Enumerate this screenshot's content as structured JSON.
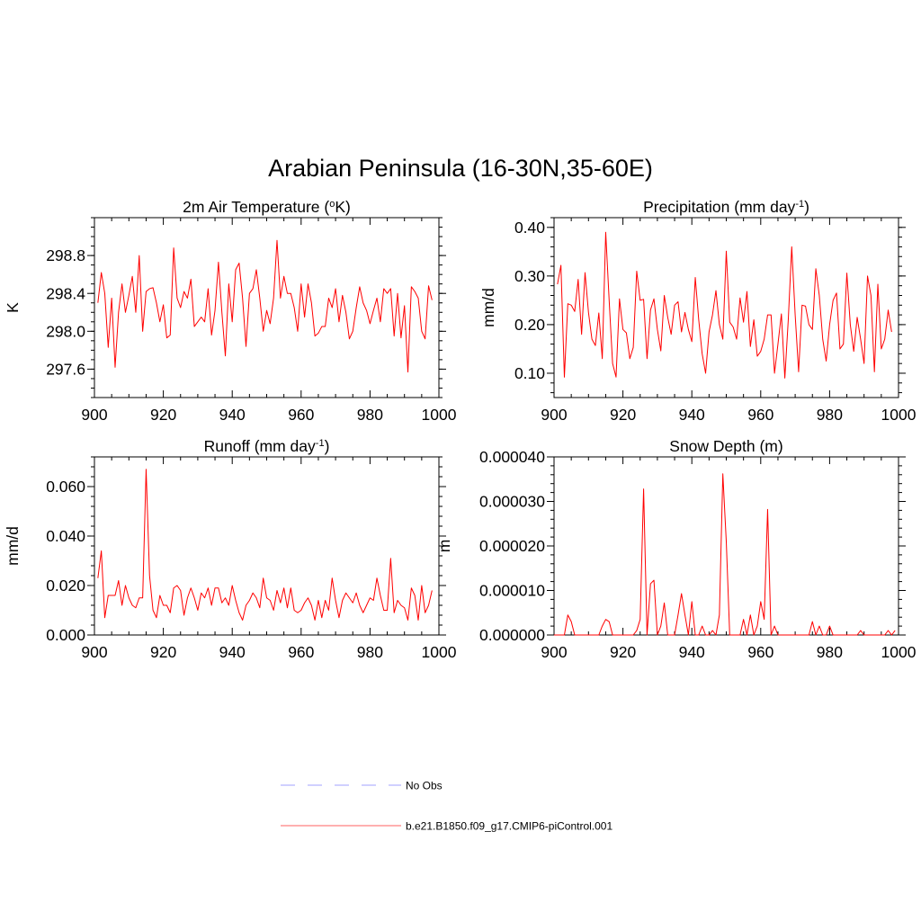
{
  "figure": {
    "title": "Arabian Peninsula (16-30N,35-60E)"
  },
  "legend": {
    "placement": "bottom-center",
    "entries": [
      {
        "label": "No Obs",
        "style": "dashed",
        "color": "#b4b4ff"
      },
      {
        "label": "b.e21.B1850.f09_g17.CMIP6-piControl.001",
        "style": "solid",
        "color": "#ff8080"
      }
    ]
  },
  "colors": {
    "series": "#ff0000",
    "axes": "#000000"
  },
  "chart_data": [
    {
      "id": "temp",
      "type": "line",
      "title": "2m Air Temperature (°K)",
      "title_parts": [
        "2m Air Temperature (",
        "o",
        "K)"
      ],
      "title_sup_index": 1,
      "ylabel": "K",
      "xlim": [
        900,
        1000
      ],
      "ylim": [
        297.3,
        299.2
      ],
      "xticks": [
        900,
        920,
        940,
        960,
        980,
        1000
      ],
      "yticks": [
        297.6,
        298.0,
        298.4,
        298.8
      ],
      "ytick_labels": [
        "297.6",
        "298.0",
        "298.4",
        "298.8"
      ],
      "yminor_step": 0.1,
      "grid": false,
      "series": [
        {
          "x_start": 901,
          "values": [
            298.3,
            298.62,
            298.4,
            297.83,
            298.35,
            297.62,
            298.2,
            298.5,
            298.2,
            298.38,
            298.58,
            298.2,
            298.8,
            298.0,
            298.42,
            298.45,
            298.46,
            298.3,
            298.1,
            298.28,
            297.93,
            297.96,
            298.88,
            298.35,
            298.25,
            298.42,
            298.35,
            298.55,
            298.05,
            298.1,
            298.15,
            298.1,
            298.45,
            297.96,
            298.22,
            298.73,
            298.2,
            297.74,
            298.5,
            298.1,
            298.65,
            298.72,
            298.35,
            297.84,
            298.4,
            298.45,
            298.65,
            298.35,
            298.0,
            298.22,
            298.08,
            298.35,
            298.96,
            298.35,
            298.58,
            298.4,
            298.4,
            298.25,
            298.0,
            298.5,
            298.15,
            298.5,
            298.3,
            297.95,
            297.98,
            298.05,
            298.05,
            298.35,
            298.25,
            298.45,
            298.1,
            298.38,
            298.2,
            297.92,
            298.0,
            298.25,
            298.47,
            298.3,
            298.22,
            298.08,
            298.22,
            298.35,
            298.1,
            298.45,
            298.4,
            298.45,
            297.95,
            298.4,
            297.93,
            298.27,
            297.57,
            298.47,
            298.42,
            298.35,
            298.0,
            297.92,
            298.48,
            298.33
          ]
        }
      ]
    },
    {
      "id": "precip",
      "type": "line",
      "title": "Precipitation (mm day-1)",
      "title_parts": [
        "Precipitation (mm day",
        "-1",
        ")"
      ],
      "title_sup_index": 1,
      "ylabel": "mm/d",
      "xlim": [
        900,
        1000
      ],
      "ylim": [
        0.05,
        0.42
      ],
      "xticks": [
        900,
        920,
        940,
        960,
        980,
        1000
      ],
      "yticks": [
        0.1,
        0.2,
        0.3,
        0.4
      ],
      "ytick_labels": [
        "0.10",
        "0.20",
        "0.30",
        "0.40"
      ],
      "yminor_step": 0.02,
      "grid": false,
      "series": [
        {
          "x_start": 901,
          "values": [
            0.283,
            0.322,
            0.092,
            0.243,
            0.24,
            0.227,
            0.293,
            0.18,
            0.307,
            0.225,
            0.17,
            0.157,
            0.224,
            0.13,
            0.39,
            0.25,
            0.12,
            0.092,
            0.253,
            0.19,
            0.183,
            0.13,
            0.153,
            0.31,
            0.25,
            0.252,
            0.13,
            0.23,
            0.253,
            0.19,
            0.146,
            0.26,
            0.215,
            0.18,
            0.24,
            0.247,
            0.185,
            0.225,
            0.19,
            0.165,
            0.297,
            0.21,
            0.14,
            0.1,
            0.185,
            0.22,
            0.27,
            0.2,
            0.17,
            0.351,
            0.205,
            0.195,
            0.17,
            0.255,
            0.205,
            0.268,
            0.155,
            0.21,
            0.135,
            0.145,
            0.17,
            0.22,
            0.22,
            0.1,
            0.16,
            0.222,
            0.09,
            0.21,
            0.36,
            0.22,
            0.103,
            0.24,
            0.238,
            0.2,
            0.19,
            0.315,
            0.26,
            0.17,
            0.125,
            0.2,
            0.25,
            0.265,
            0.15,
            0.16,
            0.306,
            0.2,
            0.145,
            0.215,
            0.17,
            0.12,
            0.3,
            0.26,
            0.103,
            0.283,
            0.15,
            0.17,
            0.23,
            0.185
          ]
        }
      ]
    },
    {
      "id": "runoff",
      "type": "line",
      "title": "Runoff (mm day-1)",
      "title_parts": [
        "Runoff (mm day",
        "-1",
        ")"
      ],
      "title_sup_index": 1,
      "ylabel": "mm/d",
      "xlim": [
        900,
        1000
      ],
      "ylim": [
        0,
        0.072
      ],
      "xticks": [
        900,
        920,
        940,
        960,
        980,
        1000
      ],
      "yticks": [
        0.0,
        0.02,
        0.04,
        0.06
      ],
      "ytick_labels": [
        "0.000",
        "0.020",
        "0.040",
        "0.060"
      ],
      "yminor_step": 0.004,
      "grid": false,
      "series": [
        {
          "x_start": 901,
          "values": [
            0.023,
            0.034,
            0.007,
            0.016,
            0.016,
            0.016,
            0.022,
            0.012,
            0.02,
            0.015,
            0.012,
            0.011,
            0.015,
            0.015,
            0.067,
            0.024,
            0.01,
            0.007,
            0.016,
            0.012,
            0.012,
            0.009,
            0.019,
            0.02,
            0.018,
            0.008,
            0.015,
            0.019,
            0.015,
            0.01,
            0.017,
            0.015,
            0.019,
            0.012,
            0.019,
            0.019,
            0.013,
            0.015,
            0.012,
            0.02,
            0.014,
            0.009,
            0.006,
            0.012,
            0.014,
            0.017,
            0.015,
            0.011,
            0.023,
            0.015,
            0.014,
            0.01,
            0.018,
            0.013,
            0.019,
            0.011,
            0.019,
            0.01,
            0.009,
            0.01,
            0.013,
            0.015,
            0.012,
            0.006,
            0.014,
            0.007,
            0.014,
            0.01,
            0.023,
            0.014,
            0.007,
            0.014,
            0.017,
            0.015,
            0.013,
            0.017,
            0.012,
            0.009,
            0.012,
            0.015,
            0.014,
            0.023,
            0.016,
            0.01,
            0.01,
            0.031,
            0.009,
            0.014,
            0.012,
            0.011,
            0.006,
            0.019,
            0.016,
            0.006,
            0.02,
            0.009,
            0.012,
            0.018
          ]
        }
      ]
    },
    {
      "id": "snow",
      "type": "line",
      "title": "Snow Depth (m)",
      "title_parts": [
        "Snow Depth (m)"
      ],
      "title_sup_index": -1,
      "ylabel": "m",
      "xlim": [
        900,
        1000
      ],
      "ylim": [
        0,
        4e-05
      ],
      "xticks": [
        900,
        920,
        940,
        960,
        980,
        1000
      ],
      "yticks": [
        0,
        1e-05,
        2e-05,
        3e-05,
        4e-05
      ],
      "ytick_labels": [
        "0.000000",
        "0.000010",
        "0.000020",
        "0.000030",
        "0.000040"
      ],
      "yminor_step": 2e-06,
      "grid": false,
      "series": [
        {
          "x_start": 900,
          "values": [
            0,
            0,
            0,
            0,
            4.5e-06,
            3e-06,
            0,
            0,
            0,
            0,
            0,
            0,
            0,
            0,
            2e-06,
            3.5e-06,
            3e-06,
            0,
            0,
            0,
            0,
            0,
            0,
            0,
            1e-06,
            3.5e-06,
            3.28e-05,
            0,
            1.15e-05,
            1.23e-05,
            0,
            2e-06,
            7.2e-06,
            0,
            0,
            0,
            4.5e-06,
            9.3e-06,
            4.5e-06,
            0,
            7.5e-06,
            0,
            0,
            2e-06,
            0,
            0,
            1e-06,
            0,
            4.5e-06,
            3.62e-05,
            2.1e-05,
            0,
            0,
            0,
            0,
            3.5e-06,
            0,
            4.5e-06,
            0,
            2e-06,
            7.5e-06,
            3.5e-06,
            2.82e-05,
            0,
            2e-06,
            0,
            0,
            0,
            0,
            0,
            0,
            0,
            0,
            0,
            0,
            3e-06,
            0,
            2e-06,
            0,
            0,
            2e-06,
            0,
            0,
            0,
            0,
            0,
            0,
            0,
            0,
            1e-06,
            0,
            0,
            0,
            0,
            0,
            0,
            0,
            1e-06,
            0,
            1e-06
          ]
        }
      ]
    }
  ]
}
